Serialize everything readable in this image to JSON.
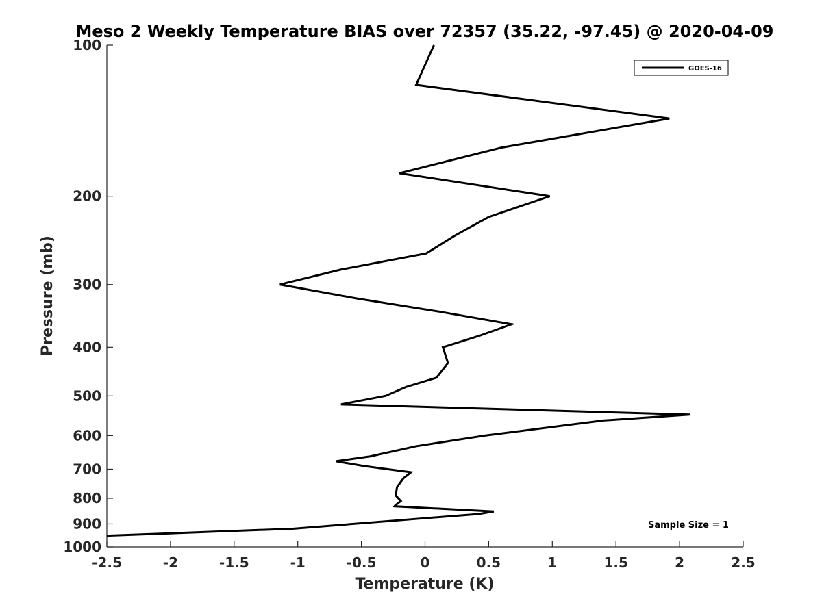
{
  "chart_data": {
    "type": "line",
    "title": "Meso 2 Weekly Temperature BIAS over 72357 (35.22, -97.45) @ 2020-04-09",
    "xlabel": "Temperature (K)",
    "ylabel": "Pressure (mb)",
    "xlim": [
      -2.5,
      2.5
    ],
    "ylim": [
      100,
      1000
    ],
    "y_scale": "log",
    "y_reversed": true,
    "xticks": [
      "-2.5",
      "-2",
      "-1.5",
      "-1",
      "-0.5",
      "0",
      "0.5",
      "1",
      "1.5",
      "2",
      "2.5"
    ],
    "xtick_values": [
      -2.5,
      -2,
      -1.5,
      -1,
      -0.5,
      0,
      0.5,
      1,
      1.5,
      2,
      2.5
    ],
    "yticks": [
      "100",
      "200",
      "300",
      "400",
      "500",
      "600",
      "700",
      "800",
      "900",
      "1000"
    ],
    "ytick_values": [
      100,
      200,
      300,
      400,
      500,
      600,
      700,
      800,
      900,
      1000
    ],
    "grid": false,
    "legend_position": "top-right",
    "annotation": "Sample Size = 1",
    "series": [
      {
        "name": "GOES-16",
        "color": "#000000",
        "points": [
          {
            "x": 0.07,
            "p": 100
          },
          {
            "x": -0.07,
            "p": 120
          },
          {
            "x": 1.92,
            "p": 140
          },
          {
            "x": 0.6,
            "p": 160
          },
          {
            "x": -0.2,
            "p": 180
          },
          {
            "x": 0.98,
            "p": 200
          },
          {
            "x": 0.5,
            "p": 220
          },
          {
            "x": 0.23,
            "p": 240
          },
          {
            "x": 0.01,
            "p": 260
          },
          {
            "x": -0.66,
            "p": 280
          },
          {
            "x": -1.14,
            "p": 300
          },
          {
            "x": -0.53,
            "p": 320
          },
          {
            "x": 0.12,
            "p": 340
          },
          {
            "x": 0.68,
            "p": 360
          },
          {
            "x": 0.42,
            "p": 380
          },
          {
            "x": 0.14,
            "p": 400
          },
          {
            "x": 0.18,
            "p": 430
          },
          {
            "x": 0.09,
            "p": 460
          },
          {
            "x": -0.15,
            "p": 480
          },
          {
            "x": -0.31,
            "p": 500
          },
          {
            "x": -0.66,
            "p": 520
          },
          {
            "x": 2.08,
            "p": 545
          },
          {
            "x": 1.4,
            "p": 560
          },
          {
            "x": 0.47,
            "p": 600
          },
          {
            "x": -0.07,
            "p": 630
          },
          {
            "x": -0.43,
            "p": 660
          },
          {
            "x": -0.7,
            "p": 675
          },
          {
            "x": -0.48,
            "p": 690
          },
          {
            "x": -0.11,
            "p": 710
          },
          {
            "x": -0.17,
            "p": 730
          },
          {
            "x": -0.22,
            "p": 760
          },
          {
            "x": -0.23,
            "p": 790
          },
          {
            "x": -0.19,
            "p": 810
          },
          {
            "x": -0.23,
            "p": 825
          },
          {
            "x": -0.24,
            "p": 830
          },
          {
            "x": 0.54,
            "p": 850
          },
          {
            "x": 0.42,
            "p": 860
          },
          {
            "x": -0.08,
            "p": 880
          },
          {
            "x": -1.04,
            "p": 920
          },
          {
            "x": -2.5,
            "p": 950
          }
        ]
      }
    ]
  }
}
